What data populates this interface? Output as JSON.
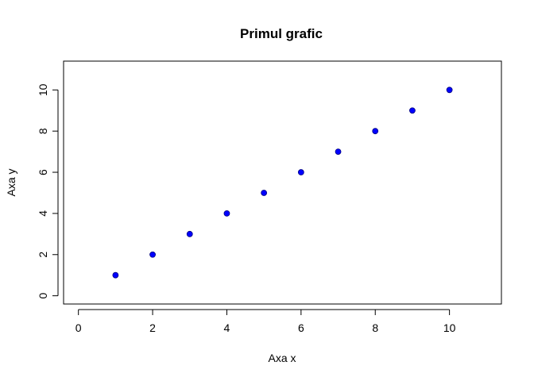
{
  "chart_data": {
    "type": "scatter",
    "title": "Primul grafic",
    "xlabel": "Axa x",
    "ylabel": "Axa y",
    "xlim": [
      -0.4,
      11.4
    ],
    "ylim": [
      -0.4,
      11.4
    ],
    "x_ticks": [
      0,
      2,
      4,
      6,
      8,
      10
    ],
    "y_ticks": [
      0,
      2,
      4,
      6,
      8,
      10
    ],
    "grid": false,
    "legend": "none",
    "point_color": "#0000ff",
    "point_edge_color": "#000080",
    "series": [
      {
        "x": [
          1,
          2,
          3,
          4,
          5,
          6,
          7,
          8,
          9,
          10
        ],
        "y": [
          1,
          2,
          3,
          4,
          5,
          6,
          7,
          8,
          9,
          10
        ]
      }
    ]
  }
}
